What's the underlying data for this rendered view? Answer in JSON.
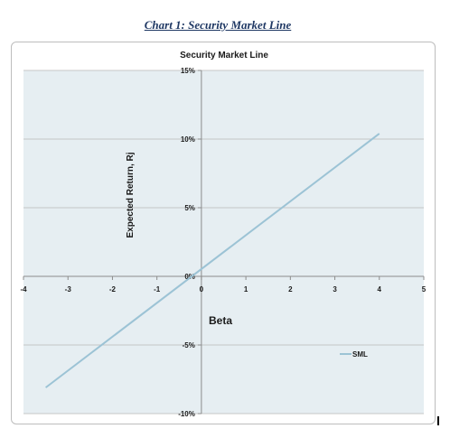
{
  "document": {
    "caption": "Chart 1: Security Market Line"
  },
  "chart_data": {
    "type": "line",
    "title": "Security Market Line",
    "xlabel": "Beta",
    "ylabel": "Expected Return, Rj",
    "xlim": [
      -4,
      5
    ],
    "ylim": [
      -10,
      15
    ],
    "x_ticks": [
      -4,
      -3,
      -2,
      -1,
      0,
      1,
      2,
      3,
      4,
      5
    ],
    "x_tick_labels": [
      "-4",
      "-3",
      "-2",
      "-1",
      "0",
      "1",
      "2",
      "3",
      "4",
      "5"
    ],
    "y_ticks": [
      -10,
      -5,
      0,
      5,
      10,
      15
    ],
    "y_tick_labels": [
      "-10%",
      "-5%",
      "0%",
      "5%",
      "10%",
      "15%"
    ],
    "grid": true,
    "legend_position": "bottom-right",
    "series": [
      {
        "name": "SML",
        "color": "#9cc3d5",
        "x": [
          -3.5,
          4
        ],
        "y": [
          -8.1,
          10.4
        ]
      }
    ],
    "colors": {
      "plot_background": "#e6eef2",
      "gridline": "#b8b8b8",
      "axis": "#8c8c8c"
    }
  }
}
